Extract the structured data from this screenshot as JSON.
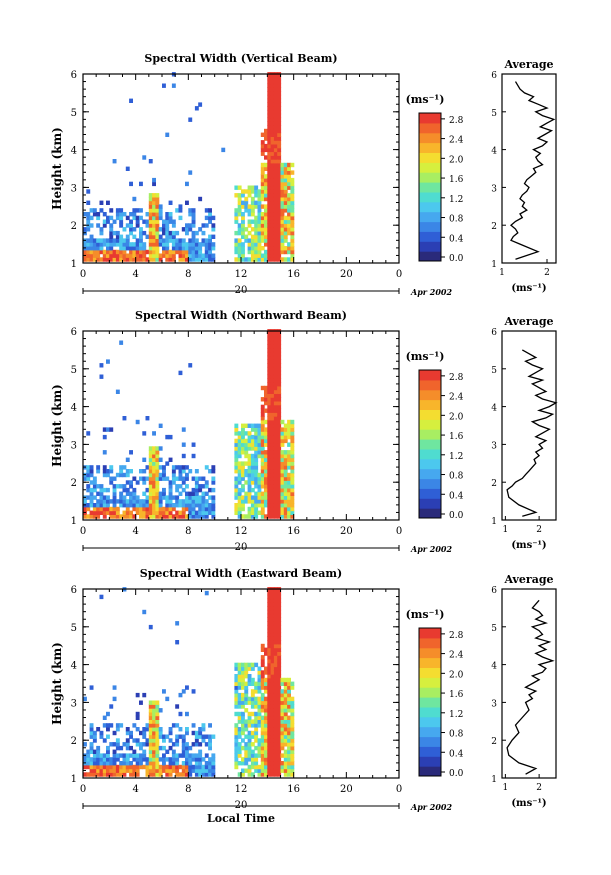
{
  "chart_data": [
    {
      "type": "heatmap",
      "title": "Spectral Width (Vertical Beam)",
      "ylabel": "Height (km)",
      "xlabel": "",
      "xlim": [
        0,
        24
      ],
      "ylim": [
        1,
        6
      ],
      "xticks": [
        "0",
        "4",
        "8",
        "12",
        "16",
        "20",
        "0"
      ],
      "yticks": [
        "1",
        "2",
        "3",
        "4",
        "5",
        "6"
      ],
      "date_label": "20",
      "date_suffix": "Apr 2002",
      "colorbar": {
        "unit": "(ms⁻¹)",
        "ticks": [
          "0.0",
          "0.4",
          "0.8",
          "1.2",
          "1.6",
          "2.0",
          "2.4",
          "2.8"
        ],
        "range": [
          0,
          3
        ]
      },
      "average": {
        "title": "Average",
        "xlabel": "(ms⁻¹)",
        "xticks": [
          "1",
          "2"
        ],
        "xlim": [
          1,
          2.2
        ],
        "yticks": [
          "1",
          "2",
          "3",
          "4",
          "5",
          "6"
        ],
        "values": [
          1.3,
          1.8,
          1.4,
          1.2,
          1.25,
          1.35,
          1.3,
          1.2,
          1.3,
          1.45,
          1.4,
          1.55,
          1.45,
          1.5,
          1.4,
          1.45,
          1.55,
          1.6,
          1.5,
          1.55,
          1.65,
          1.75,
          1.7,
          1.9,
          1.8,
          1.75,
          1.85,
          1.7,
          1.9,
          2.0,
          1.8,
          1.95,
          2.1,
          1.85,
          2.0,
          2.15,
          1.9,
          1.75,
          2.0,
          1.8,
          1.6,
          1.7,
          1.5,
          1.4,
          1.3
        ],
        "heights": [
          1.1,
          1.3,
          1.5,
          1.6,
          1.7,
          1.8,
          1.9,
          2.0,
          2.1,
          2.2,
          2.3,
          2.4,
          2.5,
          2.6,
          2.7,
          2.8,
          2.9,
          3.0,
          3.1,
          3.2,
          3.3,
          3.4,
          3.5,
          3.6,
          3.7,
          3.8,
          3.9,
          4.0,
          4.1,
          4.2,
          4.3,
          4.4,
          4.5,
          4.6,
          4.7,
          4.8,
          4.9,
          5.0,
          5.1,
          5.2,
          5.3,
          5.4,
          5.5,
          5.6,
          5.8
        ]
      }
    },
    {
      "type": "heatmap",
      "title": "Spectral Width (Northward Beam)",
      "ylabel": "Height (km)",
      "xlabel": "",
      "xlim": [
        0,
        24
      ],
      "ylim": [
        1,
        6
      ],
      "xticks": [
        "0",
        "4",
        "8",
        "12",
        "16",
        "20",
        "0"
      ],
      "yticks": [
        "1",
        "2",
        "3",
        "4",
        "5",
        "6"
      ],
      "date_label": "20",
      "date_suffix": "Apr 2002",
      "colorbar": {
        "unit": "(ms⁻¹)",
        "ticks": [
          "0.0",
          "0.4",
          "0.8",
          "1.2",
          "1.6",
          "2.0",
          "2.4",
          "2.8"
        ],
        "range": [
          0,
          3
        ]
      },
      "average": {
        "title": "Average",
        "xlabel": "(ms⁻¹)",
        "xticks": [
          "1",
          "2"
        ],
        "xlim": [
          0.9,
          2.5
        ],
        "yticks": [
          "1",
          "2",
          "3",
          "4",
          "5",
          "6"
        ],
        "values": [
          1.5,
          1.9,
          1.4,
          1.1,
          1.05,
          1.2,
          1.3,
          1.5,
          1.6,
          1.7,
          1.8,
          1.9,
          1.85,
          2.0,
          1.9,
          2.1,
          2.0,
          2.2,
          1.9,
          2.1,
          2.3,
          2.0,
          1.8,
          2.2,
          2.4,
          2.0,
          2.3,
          2.5,
          2.1,
          1.9,
          2.2,
          2.0,
          1.8,
          2.1,
          1.7,
          1.9,
          2.1,
          1.8,
          1.6,
          1.9,
          1.7,
          1.5
        ],
        "heights": [
          1.1,
          1.2,
          1.4,
          1.6,
          1.8,
          1.9,
          2.0,
          2.1,
          2.2,
          2.3,
          2.4,
          2.5,
          2.6,
          2.7,
          2.8,
          2.9,
          3.0,
          3.1,
          3.2,
          3.3,
          3.4,
          3.5,
          3.6,
          3.7,
          3.8,
          3.9,
          4.0,
          4.1,
          4.2,
          4.3,
          4.4,
          4.5,
          4.6,
          4.7,
          4.8,
          4.9,
          5.0,
          5.1,
          5.2,
          5.3,
          5.4,
          5.5
        ]
      }
    },
    {
      "type": "heatmap",
      "title": "Spectral Width (Eastward Beam)",
      "ylabel": "Height (km)",
      "xlabel": "Local Time",
      "xlim": [
        0,
        24
      ],
      "ylim": [
        1,
        6
      ],
      "xticks": [
        "0",
        "4",
        "8",
        "12",
        "16",
        "20",
        "0"
      ],
      "yticks": [
        "1",
        "2",
        "3",
        "4",
        "5",
        "6"
      ],
      "date_label": "20",
      "date_suffix": "Apr 2002",
      "colorbar": {
        "unit": "(ms⁻¹)",
        "ticks": [
          "0.0",
          "0.4",
          "0.8",
          "1.2",
          "1.6",
          "2.0",
          "2.4",
          "2.8"
        ],
        "range": [
          0,
          3
        ]
      },
      "average": {
        "title": "Average",
        "xlabel": "(ms⁻¹)",
        "xticks": [
          "1",
          "2"
        ],
        "xlim": [
          0.9,
          2.5
        ],
        "yticks": [
          "1",
          "2",
          "3",
          "4",
          "5",
          "6"
        ],
        "values": [
          1.6,
          1.9,
          1.4,
          1.1,
          1.05,
          1.2,
          1.4,
          1.3,
          1.5,
          1.7,
          1.6,
          1.8,
          1.7,
          1.9,
          1.6,
          1.8,
          2.0,
          1.8,
          2.1,
          2.2,
          2.0,
          2.4,
          2.1,
          1.9,
          2.2,
          2.0,
          2.3,
          1.9,
          2.1,
          2.0,
          1.8,
          2.2,
          1.9,
          2.1,
          2.0,
          1.8,
          2.0
        ],
        "heights": [
          1.1,
          1.25,
          1.4,
          1.6,
          1.8,
          2.0,
          2.2,
          2.4,
          2.6,
          2.8,
          3.0,
          3.1,
          3.2,
          3.3,
          3.4,
          3.5,
          3.6,
          3.7,
          3.8,
          3.9,
          4.0,
          4.1,
          4.2,
          4.3,
          4.4,
          4.5,
          4.6,
          4.7,
          4.8,
          4.9,
          5.0,
          5.1,
          5.2,
          5.3,
          5.4,
          5.5,
          5.7
        ]
      }
    }
  ]
}
